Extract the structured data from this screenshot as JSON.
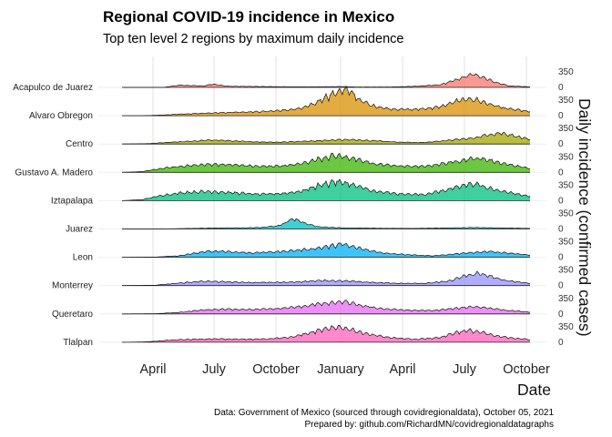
{
  "chart_data": {
    "type": "area",
    "title": "Regional COVID-19 incidence in Mexico",
    "subtitle": "Top ten level 2 regions by maximum daily incidence",
    "xlabel": "Date",
    "ylabel": "Daily incidence (confirmed cases)",
    "x_ticks": [
      "April",
      "July",
      "October",
      "January",
      "April",
      "July",
      "October"
    ],
    "x_range": [
      "2020-02-15",
      "2021-10-05"
    ],
    "y_ticks": [
      0,
      350
    ],
    "grid": true,
    "legend": "none",
    "caption_lines": [
      "Data: Government of Mexico (sourced through covidregionaldata), October 05, 2021",
      "Prepared by: github.com/RichardMN/covidregionaldatagraphs"
    ],
    "series": [
      {
        "name": "Acapulco de Juarez",
        "color": "#F8766D",
        "peak_weekly_max": 360,
        "profile": [
          [
            0,
            0
          ],
          [
            0.1,
            0.0
          ],
          [
            0.14,
            60
          ],
          [
            0.2,
            40
          ],
          [
            0.22,
            90
          ],
          [
            0.26,
            30
          ],
          [
            0.32,
            25
          ],
          [
            0.38,
            20
          ],
          [
            0.46,
            15
          ],
          [
            0.52,
            20
          ],
          [
            0.54,
            25
          ],
          [
            0.58,
            10
          ],
          [
            0.66,
            12
          ],
          [
            0.72,
            30
          ],
          [
            0.78,
            70
          ],
          [
            0.82,
            210
          ],
          [
            0.86,
            360
          ],
          [
            0.88,
            300
          ],
          [
            0.92,
            120
          ],
          [
            0.95,
            40
          ],
          [
            1,
            15
          ]
        ]
      },
      {
        "name": "Alvaro Obregon",
        "color": "#D89000",
        "peak_weekly_max": 720,
        "profile": [
          [
            0,
            0
          ],
          [
            0.05,
            0
          ],
          [
            0.1,
            20
          ],
          [
            0.18,
            60
          ],
          [
            0.26,
            90
          ],
          [
            0.34,
            110
          ],
          [
            0.4,
            150
          ],
          [
            0.44,
            200
          ],
          [
            0.47,
            320
          ],
          [
            0.5,
            520
          ],
          [
            0.52,
            600
          ],
          [
            0.54,
            720
          ],
          [
            0.56,
            640
          ],
          [
            0.58,
            450
          ],
          [
            0.61,
            280
          ],
          [
            0.66,
            180
          ],
          [
            0.72,
            170
          ],
          [
            0.78,
            240
          ],
          [
            0.82,
            400
          ],
          [
            0.86,
            460
          ],
          [
            0.9,
            320
          ],
          [
            0.94,
            200
          ],
          [
            1,
            110
          ]
        ]
      },
      {
        "name": "Centro",
        "color": "#A3A500",
        "peak_weekly_max": 300,
        "profile": [
          [
            0,
            0
          ],
          [
            0.06,
            10
          ],
          [
            0.12,
            50
          ],
          [
            0.18,
            80
          ],
          [
            0.22,
            110
          ],
          [
            0.26,
            90
          ],
          [
            0.32,
            60
          ],
          [
            0.38,
            50
          ],
          [
            0.44,
            70
          ],
          [
            0.5,
            100
          ],
          [
            0.54,
            120
          ],
          [
            0.58,
            110
          ],
          [
            0.62,
            90
          ],
          [
            0.68,
            50
          ],
          [
            0.74,
            40
          ],
          [
            0.8,
            100
          ],
          [
            0.86,
            160
          ],
          [
            0.9,
            260
          ],
          [
            0.93,
            300
          ],
          [
            0.96,
            230
          ],
          [
            1,
            120
          ]
        ]
      },
      {
        "name": "Gustavo A. Madero",
        "color": "#39B600",
        "peak_weekly_max": 460,
        "profile": [
          [
            0,
            0
          ],
          [
            0.05,
            20
          ],
          [
            0.1,
            110
          ],
          [
            0.16,
            180
          ],
          [
            0.22,
            220
          ],
          [
            0.28,
            200
          ],
          [
            0.34,
            160
          ],
          [
            0.4,
            180
          ],
          [
            0.44,
            240
          ],
          [
            0.48,
            360
          ],
          [
            0.52,
            460
          ],
          [
            0.55,
            420
          ],
          [
            0.58,
            330
          ],
          [
            0.62,
            230
          ],
          [
            0.68,
            170
          ],
          [
            0.74,
            160
          ],
          [
            0.8,
            260
          ],
          [
            0.86,
            380
          ],
          [
            0.89,
            360
          ],
          [
            0.93,
            250
          ],
          [
            1,
            110
          ]
        ]
      },
      {
        "name": "Iztapalapa",
        "color": "#00BF7D",
        "peak_weekly_max": 520,
        "profile": [
          [
            0,
            0
          ],
          [
            0.05,
            30
          ],
          [
            0.1,
            150
          ],
          [
            0.16,
            230
          ],
          [
            0.22,
            250
          ],
          [
            0.28,
            210
          ],
          [
            0.34,
            170
          ],
          [
            0.4,
            200
          ],
          [
            0.44,
            260
          ],
          [
            0.48,
            410
          ],
          [
            0.52,
            520
          ],
          [
            0.55,
            480
          ],
          [
            0.58,
            380
          ],
          [
            0.62,
            250
          ],
          [
            0.68,
            180
          ],
          [
            0.74,
            170
          ],
          [
            0.8,
            300
          ],
          [
            0.85,
            450
          ],
          [
            0.88,
            420
          ],
          [
            0.92,
            280
          ],
          [
            1,
            120
          ]
        ]
      },
      {
        "name": "Juarez",
        "color": "#00BFC4",
        "peak_weekly_max": 280,
        "profile": [
          [
            0,
            0
          ],
          [
            0.08,
            0
          ],
          [
            0.14,
            10
          ],
          [
            0.22,
            25
          ],
          [
            0.28,
            30
          ],
          [
            0.34,
            40
          ],
          [
            0.38,
            80
          ],
          [
            0.4,
            160
          ],
          [
            0.41,
            240
          ],
          [
            0.42,
            280
          ],
          [
            0.43,
            250
          ],
          [
            0.45,
            150
          ],
          [
            0.48,
            60
          ],
          [
            0.54,
            30
          ],
          [
            0.62,
            20
          ],
          [
            0.7,
            15
          ],
          [
            0.78,
            25
          ],
          [
            0.86,
            40
          ],
          [
            0.92,
            30
          ],
          [
            1,
            15
          ]
        ]
      },
      {
        "name": "Leon",
        "color": "#00B0F6",
        "peak_weekly_max": 360,
        "profile": [
          [
            0,
            0
          ],
          [
            0.08,
            5
          ],
          [
            0.14,
            40
          ],
          [
            0.2,
            150
          ],
          [
            0.24,
            170
          ],
          [
            0.28,
            140
          ],
          [
            0.32,
            120
          ],
          [
            0.38,
            150
          ],
          [
            0.44,
            200
          ],
          [
            0.48,
            250
          ],
          [
            0.52,
            320
          ],
          [
            0.54,
            360
          ],
          [
            0.56,
            300
          ],
          [
            0.6,
            200
          ],
          [
            0.64,
            120
          ],
          [
            0.7,
            70
          ],
          [
            0.76,
            40
          ],
          [
            0.82,
            90
          ],
          [
            0.86,
            130
          ],
          [
            0.9,
            160
          ],
          [
            0.94,
            120
          ],
          [
            1,
            60
          ]
        ]
      },
      {
        "name": "Monterrey",
        "color": "#9590FF",
        "peak_weekly_max": 330,
        "profile": [
          [
            0,
            0
          ],
          [
            0.08,
            10
          ],
          [
            0.14,
            70
          ],
          [
            0.2,
            120
          ],
          [
            0.26,
            100
          ],
          [
            0.32,
            80
          ],
          [
            0.4,
            90
          ],
          [
            0.46,
            120
          ],
          [
            0.5,
            140
          ],
          [
            0.54,
            130
          ],
          [
            0.58,
            110
          ],
          [
            0.62,
            80
          ],
          [
            0.68,
            60
          ],
          [
            0.74,
            60
          ],
          [
            0.8,
            120
          ],
          [
            0.84,
            260
          ],
          [
            0.87,
            330
          ],
          [
            0.9,
            260
          ],
          [
            0.94,
            140
          ],
          [
            1,
            60
          ]
        ]
      },
      {
        "name": "Queretaro",
        "color": "#E76BF3",
        "peak_weekly_max": 340,
        "profile": [
          [
            0,
            0
          ],
          [
            0.08,
            5
          ],
          [
            0.14,
            40
          ],
          [
            0.2,
            110
          ],
          [
            0.26,
            130
          ],
          [
            0.32,
            120
          ],
          [
            0.38,
            140
          ],
          [
            0.44,
            200
          ],
          [
            0.48,
            270
          ],
          [
            0.52,
            300
          ],
          [
            0.54,
            340
          ],
          [
            0.56,
            290
          ],
          [
            0.6,
            200
          ],
          [
            0.64,
            140
          ],
          [
            0.7,
            100
          ],
          [
            0.76,
            90
          ],
          [
            0.82,
            150
          ],
          [
            0.86,
            200
          ],
          [
            0.9,
            160
          ],
          [
            0.94,
            100
          ],
          [
            1,
            50
          ]
        ]
      },
      {
        "name": "Tlalpan",
        "color": "#FF62BC",
        "peak_weekly_max": 420,
        "profile": [
          [
            0,
            0
          ],
          [
            0.06,
            10
          ],
          [
            0.12,
            60
          ],
          [
            0.18,
            80
          ],
          [
            0.24,
            90
          ],
          [
            0.3,
            80
          ],
          [
            0.36,
            90
          ],
          [
            0.42,
            150
          ],
          [
            0.46,
            260
          ],
          [
            0.5,
            380
          ],
          [
            0.53,
            420
          ],
          [
            0.56,
            350
          ],
          [
            0.6,
            220
          ],
          [
            0.66,
            120
          ],
          [
            0.72,
            80
          ],
          [
            0.78,
            130
          ],
          [
            0.82,
            270
          ],
          [
            0.85,
            320
          ],
          [
            0.88,
            270
          ],
          [
            0.92,
            160
          ],
          [
            1,
            70
          ]
        ]
      }
    ]
  }
}
